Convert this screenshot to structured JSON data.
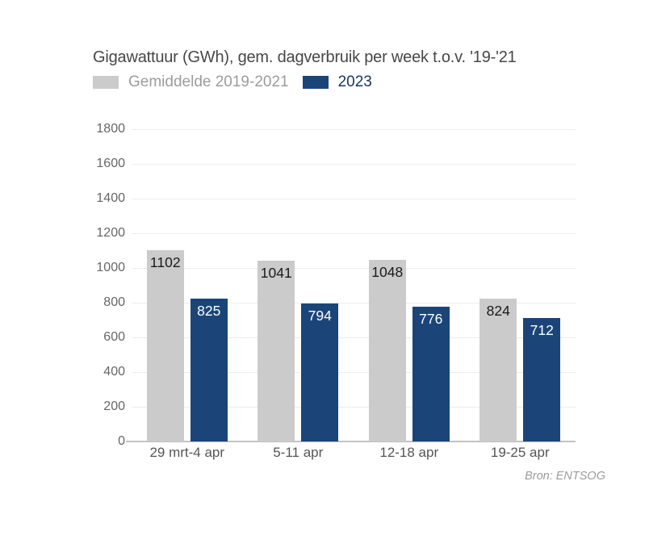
{
  "title": "Gigawattuur (GWh), gem. dagverbruik per week t.o.v. '19-'21",
  "legend": {
    "items": [
      {
        "label": "Gemiddelde 2019-2021",
        "swatch_color": "#cbcbcb",
        "text_color": "#9c9c9c"
      },
      {
        "label": "2023",
        "swatch_color": "#1b4578",
        "text_color": "#17355a"
      }
    ]
  },
  "source": "Bron: ENTSOG",
  "chart_data": {
    "type": "bar",
    "categories": [
      "29 mrt-4 apr",
      "5-11 apr",
      "12-18 apr",
      "19-25 apr"
    ],
    "series": [
      {
        "name": "Gemiddelde 2019-2021",
        "color": "#cbcbcb",
        "value_label_color": "#1a1a1a",
        "values": [
          1102,
          1041,
          1048,
          824
        ]
      },
      {
        "name": "2023",
        "color": "#1b4578",
        "value_label_color": "#ffffff",
        "values": [
          825,
          794,
          776,
          712
        ]
      }
    ],
    "xlabel": "",
    "ylabel": "",
    "ylim": [
      0,
      1800
    ],
    "yticks": [
      0,
      200,
      400,
      600,
      800,
      1000,
      1200,
      1400,
      1600,
      1800
    ],
    "grid": true,
    "legend_position": "top-left",
    "value_labels": "inside-top"
  },
  "colors": {
    "background": "#ffffff",
    "gridline": "#ececec",
    "axis_line": "#c2c2c2",
    "title_text": "#474747",
    "tick_text": "#666666",
    "category_text": "#555555",
    "source_text": "#9b9b9b"
  }
}
